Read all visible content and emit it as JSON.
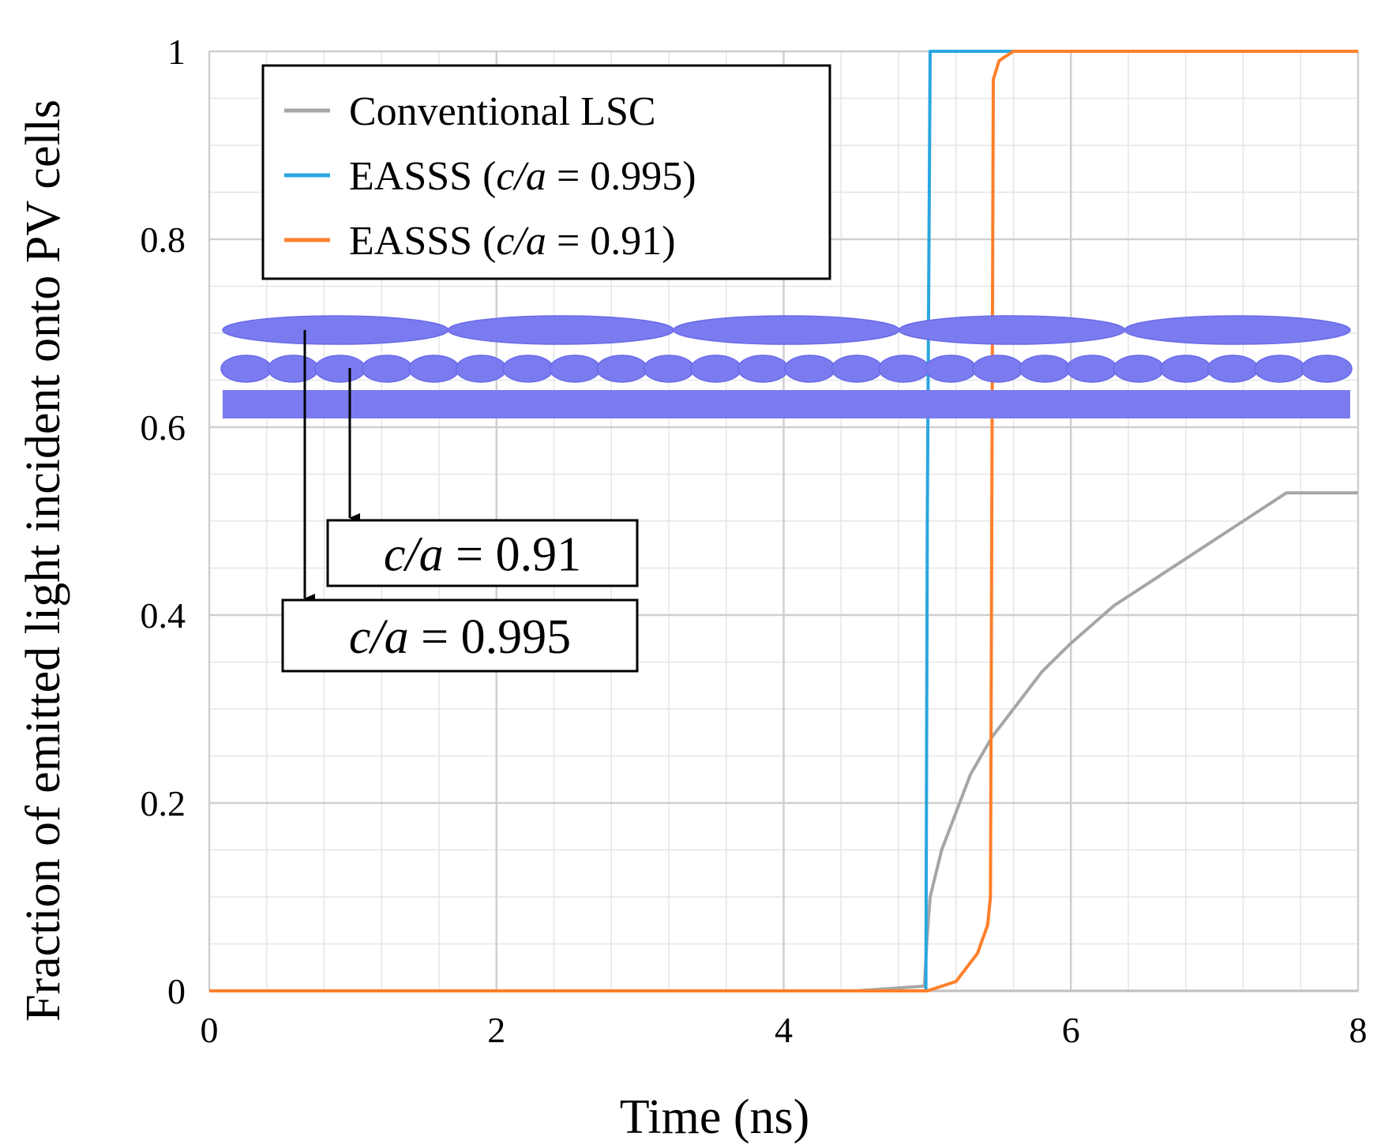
{
  "chart_data": {
    "type": "line",
    "title": "",
    "xlabel": "Time (ns)",
    "ylabel": "Fraction of emitted light incident onto PV cells",
    "xlim": [
      0,
      8
    ],
    "ylim": [
      0,
      1
    ],
    "x_ticks": [
      0,
      2,
      4,
      6,
      8
    ],
    "y_ticks": [
      0,
      0.2,
      0.4,
      0.6,
      0.8,
      1
    ],
    "x_tick_labels": [
      "0",
      "2",
      "4",
      "6",
      "8"
    ],
    "y_tick_labels": [
      "0",
      "0.2",
      "0.4",
      "0.6",
      "0.8",
      "1"
    ],
    "grid": true,
    "legend_position": "top-left",
    "series": [
      {
        "name": "Conventional LSC",
        "color": "#a6a6a6",
        "x": [
          0,
          4.5,
          4.98,
          5.0,
          5.02,
          5.1,
          5.2,
          5.3,
          5.45,
          5.6,
          5.8,
          6.0,
          6.3,
          6.6,
          6.9,
          7.2,
          7.4,
          7.5,
          8.0
        ],
        "y": [
          0,
          0.0,
          0.005,
          0.06,
          0.1,
          0.15,
          0.19,
          0.23,
          0.27,
          0.3,
          0.34,
          0.37,
          0.41,
          0.44,
          0.47,
          0.5,
          0.52,
          0.53,
          0.53
        ]
      },
      {
        "name": "EASSS (c/a = 0.995)",
        "legend_parts": [
          "EASSS (",
          "c/a",
          " = 0.995)"
        ],
        "color": "#29a6e0",
        "x": [
          0,
          4.99,
          5.0,
          5.02,
          8.0
        ],
        "y": [
          0,
          0,
          0.5,
          1.0,
          1.0
        ]
      },
      {
        "name": "EASSS (c/a = 0.91)",
        "legend_parts": [
          "EASSS (",
          "c/a",
          " = 0.91)"
        ],
        "color": "#ff7f2a",
        "x": [
          0,
          5.0,
          5.2,
          5.35,
          5.42,
          5.44,
          5.46,
          5.5,
          5.6,
          8.0
        ],
        "y": [
          0,
          0,
          0.01,
          0.04,
          0.07,
          0.1,
          0.97,
          0.99,
          1.0,
          1.0
        ]
      }
    ],
    "annotations": [
      {
        "label_parts": [
          "c/a",
          " = 0.91"
        ],
        "target": "small-ellipse-layer"
      },
      {
        "label_parts": [
          "c/a",
          " = 0.995"
        ],
        "target": "large-ellipse-layer"
      }
    ],
    "inset": {
      "description_color": "#7b7bf0",
      "large_ellipse_count": 5,
      "small_ellipse_count": 24
    }
  }
}
